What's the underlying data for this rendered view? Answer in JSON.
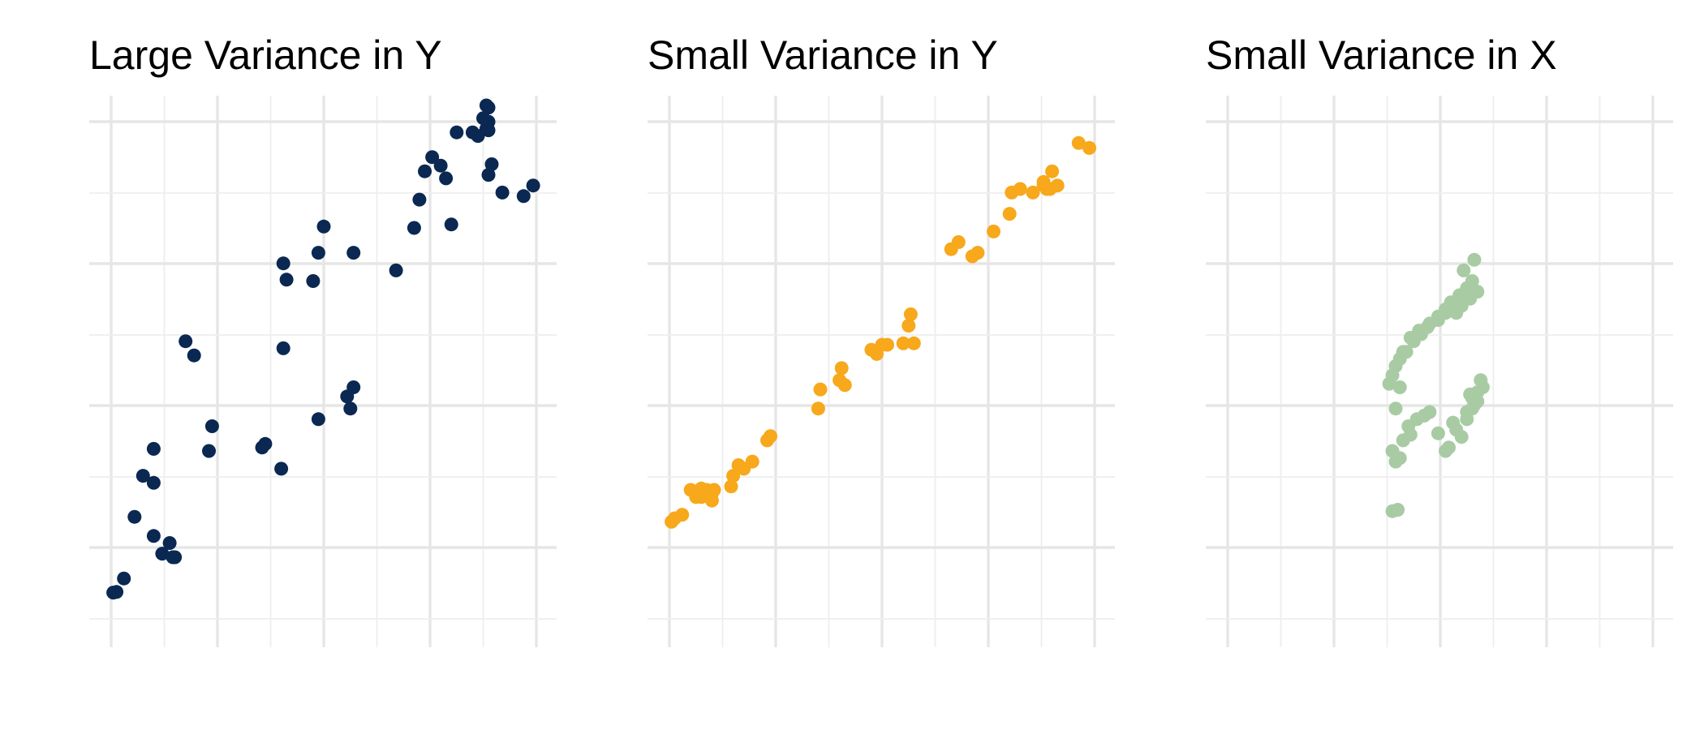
{
  "colors": {
    "background": "#ffffff",
    "grid_major": "#e6e6e6",
    "grid_minor": "#eeeeee",
    "title": "#000000"
  },
  "chart_data": [
    {
      "type": "scatter",
      "title": "Large Variance in Y",
      "xlabel": "",
      "ylabel": "",
      "grid": true,
      "legend": "none",
      "xlim": [
        -0.2,
        4.2
      ],
      "ylim": [
        -0.5,
        7.0
      ],
      "color": "#0a2851",
      "series": [
        {
          "x": [
            0.02,
            0.05,
            0.12,
            0.22,
            0.3,
            0.4,
            0.4,
            0.4,
            0.48,
            0.55,
            0.58,
            0.6,
            0.7,
            0.78,
            0.92,
            0.95,
            1.42,
            1.45,
            1.6,
            1.62,
            1.65,
            1.62,
            1.9,
            1.95,
            2.0,
            1.95,
            2.25,
            2.22,
            2.28,
            2.28,
            2.68,
            2.85,
            2.9,
            2.95,
            3.02,
            3.15,
            3.2,
            3.25,
            3.4,
            3.45,
            3.5,
            3.55,
            3.55,
            3.53,
            3.55,
            3.53,
            3.58,
            3.55,
            3.68,
            3.88,
            3.97,
            3.1
          ],
          "y": [
            0.05,
            0.06,
            0.25,
            1.12,
            1.7,
            2.08,
            1.6,
            0.85,
            0.6,
            0.75,
            0.55,
            0.55,
            3.6,
            3.4,
            2.05,
            2.4,
            2.1,
            2.15,
            1.8,
            3.5,
            4.47,
            4.7,
            4.45,
            4.85,
            5.22,
            2.5,
            2.65,
            2.82,
            2.95,
            4.85,
            4.6,
            5.2,
            5.6,
            6.0,
            6.2,
            5.9,
            5.25,
            6.55,
            6.55,
            6.5,
            6.75,
            6.7,
            6.58,
            6.93,
            6.9,
            6.6,
            6.1,
            5.95,
            5.7,
            5.65,
            5.8,
            6.08
          ]
        }
      ]
    },
    {
      "type": "scatter",
      "title": "Small Variance in Y",
      "xlabel": "",
      "ylabel": "",
      "grid": true,
      "legend": "none",
      "xlim": [
        -0.2,
        4.2
      ],
      "ylim": [
        -0.5,
        7.0
      ],
      "color": "#f7a81b",
      "series": [
        {
          "x": [
            0.02,
            0.05,
            0.12,
            0.2,
            0.25,
            0.3,
            0.35,
            0.4,
            0.4,
            0.3,
            0.42,
            0.58,
            0.6,
            0.65,
            0.7,
            0.78,
            0.92,
            0.95,
            1.4,
            1.42,
            1.6,
            1.62,
            1.65,
            1.9,
            1.95,
            2.0,
            2.05,
            2.2,
            2.25,
            2.27,
            2.3,
            2.65,
            2.72,
            2.85,
            2.9,
            3.05,
            3.2,
            3.22,
            3.3,
            3.42,
            3.52,
            3.55,
            3.58,
            3.6,
            3.52,
            3.65,
            3.85,
            3.95
          ],
          "y": [
            1.05,
            1.1,
            1.15,
            1.5,
            1.4,
            1.52,
            1.5,
            1.45,
            1.35,
            1.4,
            1.5,
            1.55,
            1.7,
            1.85,
            1.8,
            1.9,
            2.2,
            2.26,
            2.65,
            2.92,
            3.05,
            3.22,
            2.98,
            3.48,
            3.42,
            3.55,
            3.55,
            3.57,
            3.82,
            3.98,
            3.57,
            4.9,
            5.0,
            4.8,
            4.85,
            5.15,
            5.4,
            5.7,
            5.75,
            5.7,
            5.8,
            5.75,
            5.75,
            6.0,
            5.85,
            5.8,
            6.4,
            6.33
          ]
        }
      ]
    },
    {
      "type": "scatter",
      "title": "Small Variance in X",
      "xlabel": "",
      "ylabel": "",
      "grid": true,
      "legend": "none",
      "xlim": [
        -0.2,
        4.2
      ],
      "ylim": [
        -0.5,
        7.0
      ],
      "color": "#a8cba4",
      "series": [
        {
          "x": [
            1.55,
            1.6,
            1.58,
            1.62,
            1.65,
            1.72,
            1.7,
            1.78,
            1.85,
            1.9,
            1.98,
            2.05,
            2.08,
            2.15,
            2.2,
            2.12,
            2.25,
            2.25,
            2.3,
            2.32,
            2.35,
            2.3,
            2.28,
            2.35,
            2.4,
            2.38,
            1.52,
            1.55,
            1.58,
            1.62,
            1.68,
            1.75,
            1.82,
            1.9,
            1.98,
            2.05,
            2.1,
            2.18,
            2.25,
            2.3,
            2.22,
            2.32,
            1.55,
            1.58,
            1.62,
            1.65,
            1.72,
            1.8,
            1.88,
            1.98,
            2.05,
            2.15,
            2.2,
            2.28,
            2.35
          ],
          "y": [
            1.2,
            1.22,
            1.9,
            1.95,
            2.2,
            2.28,
            2.4,
            2.5,
            2.55,
            2.6,
            2.3,
            2.05,
            2.1,
            2.35,
            2.25,
            2.45,
            2.5,
            2.6,
            2.65,
            2.7,
            2.75,
            2.8,
            2.85,
            2.88,
            2.95,
            3.05,
            3.0,
            3.12,
            3.25,
            3.35,
            3.45,
            3.6,
            3.7,
            3.85,
            3.95,
            4.05,
            4.15,
            4.25,
            4.35,
            4.45,
            4.6,
            4.75,
            2.05,
            2.65,
            2.95,
            3.45,
            3.65,
            3.75,
            3.8,
            3.9,
            4.0,
            4.0,
            4.1,
            4.2,
            4.3
          ]
        }
      ]
    }
  ]
}
